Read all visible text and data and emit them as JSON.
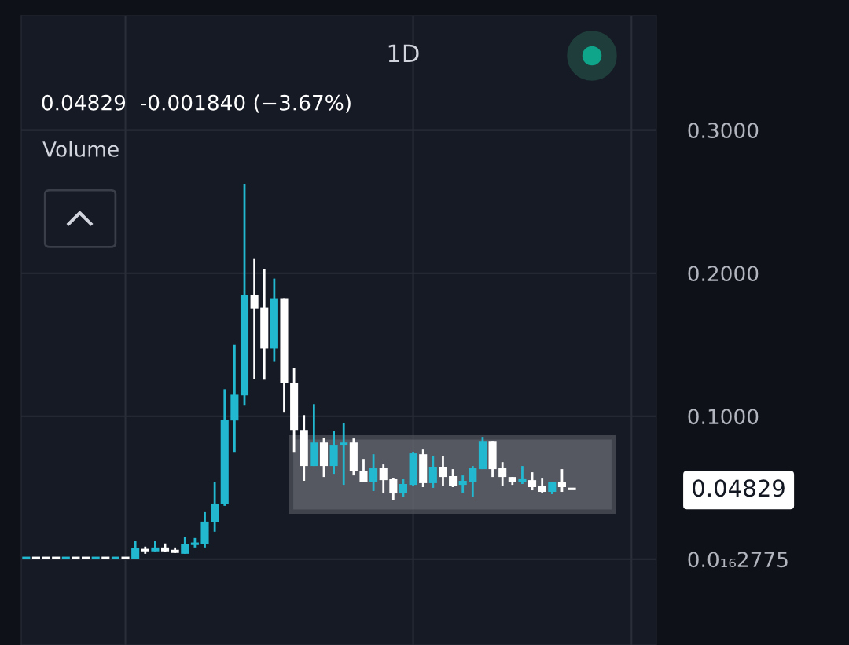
{
  "chart_data": {
    "type": "candlestick",
    "title": "1D",
    "categories": [
      null,
      null,
      null,
      null,
      null,
      null,
      null,
      null,
      null,
      null,
      null,
      null,
      null,
      null,
      null,
      null,
      null,
      null,
      null,
      null,
      null,
      null,
      null,
      null,
      null,
      null,
      null,
      null,
      null,
      null,
      null,
      null,
      null,
      null,
      null,
      null,
      null,
      null,
      null,
      null,
      null,
      null,
      null,
      null,
      null,
      null,
      null,
      null,
      null,
      null,
      null,
      null,
      null,
      null,
      null,
      null,
      null,
      null,
      null,
      null,
      null,
      null,
      null,
      null
    ],
    "ohlc": [
      [
        0,
        0.001,
        0,
        0.001
      ],
      [
        0.001,
        0.001,
        0,
        0
      ],
      [
        0.001,
        0.001,
        0,
        0
      ],
      [
        0.001,
        0.001,
        0,
        0
      ],
      [
        0,
        0.001,
        0,
        0.001
      ],
      [
        0.001,
        0.001,
        0,
        0
      ],
      [
        0.001,
        0.001,
        0,
        0
      ],
      [
        0,
        0.001,
        0,
        0.001
      ],
      [
        0.001,
        0.001,
        0,
        0
      ],
      [
        0,
        0.001,
        0,
        0.001
      ],
      [
        0.001,
        0.001,
        0,
        0
      ],
      [
        0,
        0.0126,
        0,
        0.0077
      ],
      [
        0.0071,
        0.0088,
        0.0038,
        0.0055
      ],
      [
        0.0055,
        0.0126,
        0.0055,
        0.0082
      ],
      [
        0.0082,
        0.011,
        0.0049,
        0.0055
      ],
      [
        0.0066,
        0.0082,
        0.0044,
        0.0044
      ],
      [
        0.0038,
        0.0153,
        0.0038,
        0.0104
      ],
      [
        0.0099,
        0.0148,
        0.0082,
        0.011
      ],
      [
        0.0104,
        0.0329,
        0.0082,
        0.0263
      ],
      [
        0.0258,
        0.0542,
        0.0192,
        0.0389
      ],
      [
        0.0384,
        0.1189,
        0.0373,
        0.0975
      ],
      [
        0.097,
        0.15,
        0.075,
        0.115
      ],
      [
        0.1145,
        0.2625,
        0.1074,
        0.1847
      ],
      [
        0.1847,
        0.2099,
        0.126,
        0.1753
      ],
      [
        0.1759,
        0.2027,
        0.1255,
        0.1474
      ],
      [
        0.1474,
        0.1962,
        0.138,
        0.1825
      ],
      [
        0.1825,
        0.1825,
        0.1025,
        0.1233
      ],
      [
        0.1233,
        0.1337,
        0.075,
        0.0904
      ],
      [
        0.0904,
        0.1008,
        0.0548,
        0.0652
      ],
      [
        0.0652,
        0.1085,
        0.0652,
        0.0816
      ],
      [
        0.0816,
        0.0849,
        0.0575,
        0.0652
      ],
      [
        0.0652,
        0.0899,
        0.0597,
        0.0795
      ],
      [
        0.0795,
        0.0953,
        0.052,
        0.0816
      ],
      [
        0.0816,
        0.0844,
        0.0586,
        0.0614
      ],
      [
        0.0614,
        0.0701,
        0.0542,
        0.0542
      ],
      [
        0.0542,
        0.0734,
        0.0477,
        0.0636
      ],
      [
        0.0636,
        0.0663,
        0.046,
        0.0553
      ],
      [
        0.0559,
        0.057,
        0.0411,
        0.046
      ],
      [
        0.046,
        0.0559,
        0.0438,
        0.0526
      ],
      [
        0.052,
        0.0751,
        0.051,
        0.074
      ],
      [
        0.0734,
        0.0767,
        0.0504,
        0.0532
      ],
      [
        0.0532,
        0.0723,
        0.0499,
        0.0647
      ],
      [
        0.0647,
        0.0723,
        0.0515,
        0.0575
      ],
      [
        0.0581,
        0.063,
        0.0504,
        0.0515
      ],
      [
        0.052,
        0.0586,
        0.0466,
        0.0548
      ],
      [
        0.0542,
        0.0652,
        0.0433,
        0.0636
      ],
      [
        0.063,
        0.0855,
        0.063,
        0.0827
      ],
      [
        0.0827,
        0.0827,
        0.0575,
        0.063
      ],
      [
        0.0636,
        0.0679,
        0.0515,
        0.0575
      ],
      [
        0.0575,
        0.0575,
        0.052,
        0.0537
      ],
      [
        0.0542,
        0.0652,
        0.0526,
        0.0559
      ],
      [
        0.0553,
        0.0608,
        0.0482,
        0.0504
      ],
      [
        0.051,
        0.0564,
        0.0466,
        0.0471
      ],
      [
        0.0471,
        0.0537,
        0.0455,
        0.0537
      ],
      [
        0.0537,
        0.063,
        0.0471,
        0.0504
      ],
      [
        0.0493,
        0.0493,
        0.04829,
        0.04829
      ],
      null,
      null,
      null,
      null,
      null,
      null,
      null,
      null
    ],
    "colors": [
      "#22b8d0",
      "#ffffff",
      "#ffffff",
      "#ffffff",
      "#22b8d0",
      "#ffffff",
      "#ffffff",
      "#22b8d0",
      "#ffffff",
      "#22b8d0",
      "#ffffff",
      "#22b8d0",
      "#ffffff",
      "#22b8d0",
      "#ffffff",
      "#ffffff",
      "#22b8d0",
      "#22b8d0",
      "#22b8d0",
      "#22b8d0",
      "#22b8d0",
      "#22b8d0",
      "#22b8d0",
      "#ffffff",
      "#ffffff",
      "#22b8d0",
      "#ffffff",
      "#ffffff",
      "#ffffff",
      "#22b8d0",
      "#ffffff",
      "#22b8d0",
      "#22b8d0",
      "#ffffff",
      "#ffffff",
      "#22b8d0",
      "#ffffff",
      "#ffffff",
      "#22b8d0",
      "#22b8d0",
      "#ffffff",
      "#22b8d0",
      "#ffffff",
      "#ffffff",
      "#22b8d0",
      "#22b8d0",
      "#22b8d0",
      "#ffffff",
      "#ffffff",
      "#ffffff",
      "#22b8d0",
      "#ffffff",
      "#ffffff",
      "#22b8d0",
      "#ffffff",
      "#ffffff",
      null,
      null,
      null,
      null,
      null,
      null,
      null,
      null
    ],
    "ylim": [
      -0.06,
      0.38
    ],
    "yticks": [
      {
        "value": 0,
        "label": "0.0₁₆2775"
      },
      {
        "value": 0.1,
        "label": "0.1000"
      },
      {
        "value": 0.2,
        "label": "0.2000"
      },
      {
        "value": 0.3,
        "label": "0.3000"
      }
    ],
    "tick_labels": "y",
    "grid": true,
    "annotations": [
      "0.04829  -0.001840 (−3.67%)",
      "Volume",
      "0.04829"
    ]
  }
}
